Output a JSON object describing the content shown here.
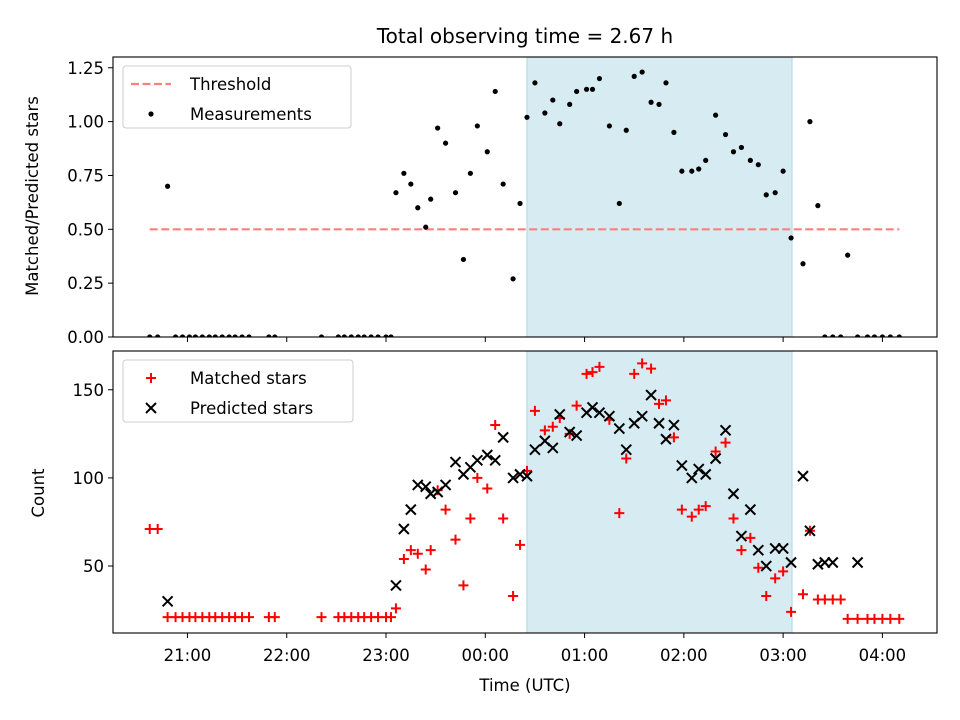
{
  "title": "Total observing time = 2.67 h",
  "colors": {
    "threshold": "#ff7f7f",
    "measurements": "#000000",
    "matched": "#ff0000",
    "predicted": "#000000",
    "window": "#add8e6"
  },
  "chart_data": [
    {
      "type": "scatter",
      "ylabel": "Matched/Predicted stars",
      "xlabel": "",
      "x_unit": "hours since 00:00 UTC",
      "xlim": [
        -3.75,
        4.55
      ],
      "ylim": [
        0,
        1.3
      ],
      "yticks": [
        0,
        0.25,
        0.5,
        0.75,
        1.0,
        1.25
      ],
      "ytick_labels": [
        "0.00",
        "0.25",
        "0.50",
        "0.75",
        "1.00",
        "1.25"
      ],
      "shaded_span": [
        0.42,
        3.09
      ],
      "legend": {
        "placement": "top-left",
        "entries": [
          "Threshold",
          "Measurements"
        ]
      },
      "series": [
        {
          "name": "Threshold",
          "style": "dashed-line",
          "x": [
            -3.38,
            4.17
          ],
          "y": [
            0.5,
            0.5
          ]
        },
        {
          "name": "Measurements",
          "style": "dot",
          "x": [
            -3.38,
            -3.3,
            -3.2,
            -3.12,
            -3.05,
            -2.98,
            -2.92,
            -2.85,
            -2.78,
            -2.72,
            -2.65,
            -2.58,
            -2.52,
            -2.45,
            -2.38,
            -2.18,
            -2.12,
            -1.65,
            -1.48,
            -1.42,
            -1.35,
            -1.28,
            -1.22,
            -1.15,
            -1.08,
            -1.0,
            -0.95,
            -0.9,
            -0.82,
            -0.75,
            -0.68,
            -0.6,
            -0.55,
            -0.48,
            -0.4,
            -0.3,
            -0.22,
            -0.15,
            -0.08,
            0.02,
            0.1,
            0.18,
            0.28,
            0.35,
            0.42,
            0.5,
            0.6,
            0.68,
            0.75,
            0.85,
            0.92,
            1.02,
            1.08,
            1.15,
            1.25,
            1.35,
            1.42,
            1.5,
            1.58,
            1.67,
            1.75,
            1.82,
            1.9,
            1.98,
            2.08,
            2.15,
            2.22,
            2.32,
            2.42,
            2.5,
            2.58,
            2.67,
            2.75,
            2.83,
            2.92,
            3.0,
            3.08,
            3.2,
            3.27,
            3.35,
            3.42,
            3.5,
            3.58,
            3.65,
            3.75,
            3.85,
            3.92,
            4.0,
            4.08,
            4.17
          ],
          "y": [
            0,
            0,
            0.7,
            0,
            0,
            0,
            0,
            0,
            0,
            0,
            0,
            0,
            0,
            0,
            0,
            0,
            0,
            0,
            0,
            0,
            0,
            0,
            0,
            0,
            0,
            0,
            0,
            0.67,
            0.76,
            0.71,
            0.6,
            0.51,
            0.64,
            0.97,
            0.9,
            0.67,
            0.36,
            0.76,
            0.98,
            0.86,
            1.14,
            0.71,
            0.27,
            0.62,
            1.02,
            1.18,
            1.04,
            1.1,
            0.99,
            1.08,
            1.14,
            1.15,
            1.15,
            1.2,
            0.98,
            0.62,
            0.96,
            1.21,
            1.23,
            1.09,
            1.08,
            1.18,
            0.95,
            0.77,
            0.77,
            0.78,
            0.82,
            1.03,
            0.94,
            0.86,
            0.88,
            0.82,
            0.8,
            0.66,
            0.67,
            0.77,
            0.46,
            0.34,
            1.0,
            0.61,
            0,
            0,
            0,
            0.38,
            0,
            0,
            0,
            0,
            0,
            0
          ]
        }
      ]
    },
    {
      "type": "scatter",
      "ylabel": "Count",
      "xlabel": "Time (UTC)",
      "x_unit": "hours since 00:00 UTC",
      "xlim": [
        -3.75,
        4.55
      ],
      "ylim": [
        12,
        172
      ],
      "yticks": [
        50,
        100,
        150
      ],
      "ytick_labels": [
        "50",
        "100",
        "150"
      ],
      "xticks": [
        -3,
        -2,
        -1,
        0,
        1,
        2,
        3,
        4
      ],
      "xtick_labels": [
        "21:00",
        "22:00",
        "23:00",
        "00:00",
        "01:00",
        "02:00",
        "03:00",
        "04:00"
      ],
      "shaded_span": [
        0.42,
        3.09
      ],
      "legend": {
        "placement": "top-left",
        "entries": [
          "Matched stars",
          "Predicted stars"
        ]
      },
      "series": [
        {
          "name": "Matched stars",
          "style": "plus",
          "x": [
            -3.38,
            -3.3,
            -3.2,
            -3.12,
            -3.05,
            -2.98,
            -2.92,
            -2.85,
            -2.78,
            -2.72,
            -2.65,
            -2.58,
            -2.52,
            -2.45,
            -2.38,
            -2.18,
            -2.12,
            -1.65,
            -1.48,
            -1.42,
            -1.35,
            -1.28,
            -1.22,
            -1.15,
            -1.08,
            -1.0,
            -0.95,
            -0.9,
            -0.82,
            -0.75,
            -0.68,
            -0.6,
            -0.55,
            -0.48,
            -0.4,
            -0.3,
            -0.22,
            -0.15,
            -0.08,
            0.02,
            0.1,
            0.18,
            0.28,
            0.35,
            0.42,
            0.5,
            0.6,
            0.68,
            0.75,
            0.85,
            0.92,
            1.02,
            1.08,
            1.15,
            1.25,
            1.35,
            1.42,
            1.5,
            1.58,
            1.67,
            1.75,
            1.82,
            1.9,
            1.98,
            2.08,
            2.15,
            2.22,
            2.32,
            2.42,
            2.5,
            2.58,
            2.67,
            2.75,
            2.83,
            2.92,
            3.0,
            3.08,
            3.2,
            3.27,
            3.35,
            3.42,
            3.5,
            3.58,
            3.65,
            3.75,
            3.85,
            3.92,
            4.0,
            4.08,
            4.17
          ],
          "y": [
            71,
            71,
            21,
            21,
            21,
            21,
            21,
            21,
            21,
            21,
            21,
            21,
            21,
            21,
            21,
            21,
            21,
            21,
            21,
            21,
            21,
            21,
            21,
            21,
            21,
            21,
            21,
            26,
            54,
            59,
            57,
            48,
            59,
            93,
            82,
            65,
            39,
            77,
            100,
            94,
            130,
            77,
            33,
            62,
            104,
            138,
            127,
            129,
            134,
            125,
            141,
            159,
            160,
            163,
            133,
            80,
            111,
            159,
            165,
            162,
            142,
            144,
            123,
            82,
            78,
            82,
            84,
            115,
            120,
            77,
            59,
            66,
            49,
            33,
            43,
            47,
            24,
            34,
            70,
            31,
            31,
            31,
            31,
            20,
            20,
            20,
            20,
            20,
            20,
            20
          ]
        },
        {
          "name": "Predicted stars",
          "style": "x",
          "x": [
            -3.2,
            -0.9,
            -0.82,
            -0.75,
            -0.68,
            -0.6,
            -0.55,
            -0.48,
            -0.4,
            -0.3,
            -0.22,
            -0.15,
            -0.08,
            0.02,
            0.1,
            0.18,
            0.28,
            0.35,
            0.42,
            0.5,
            0.6,
            0.68,
            0.75,
            0.85,
            0.92,
            1.02,
            1.08,
            1.15,
            1.25,
            1.35,
            1.42,
            1.5,
            1.58,
            1.67,
            1.75,
            1.82,
            1.9,
            1.98,
            2.08,
            2.15,
            2.22,
            2.32,
            2.42,
            2.5,
            2.58,
            2.67,
            2.75,
            2.83,
            2.92,
            3.0,
            3.08,
            3.2,
            3.27,
            3.35,
            3.42,
            3.5,
            3.75
          ],
          "y": [
            30,
            39,
            71,
            82,
            96,
            95,
            91,
            92,
            96,
            109,
            102,
            106,
            110,
            113,
            110,
            123,
            100,
            102,
            101,
            116,
            121,
            117,
            136,
            126,
            124,
            137,
            140,
            137,
            135,
            128,
            116,
            131,
            135,
            147,
            131,
            122,
            130,
            107,
            100,
            105,
            102,
            111,
            127,
            91,
            67,
            82,
            59,
            50,
            60,
            60,
            52,
            101,
            70,
            51,
            52,
            52,
            52
          ]
        }
      ]
    }
  ]
}
